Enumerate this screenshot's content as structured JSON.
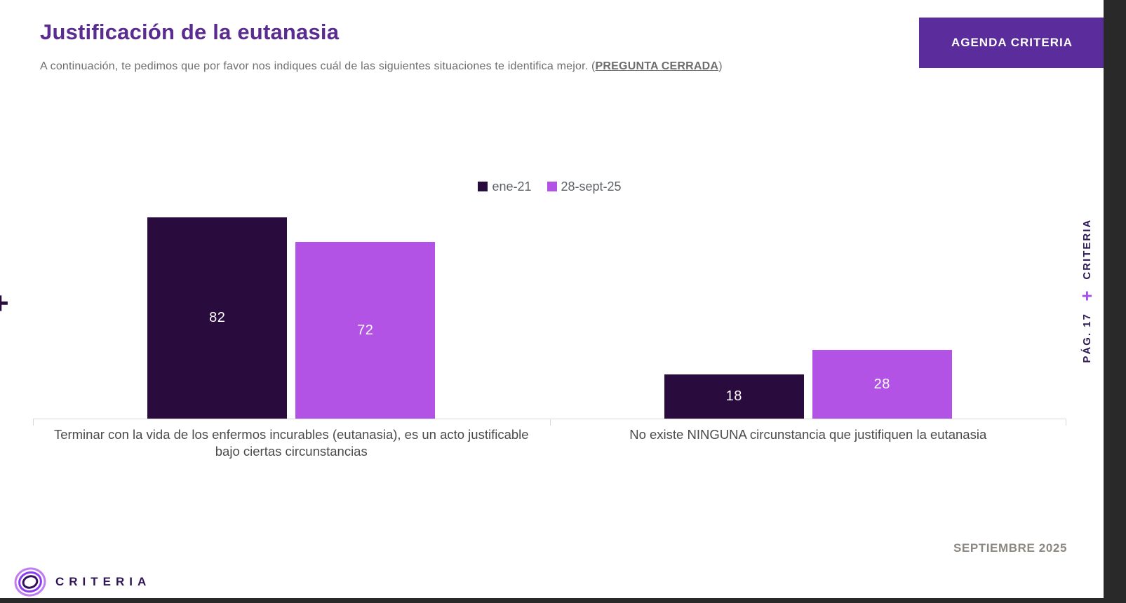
{
  "header": {
    "title": "Justificación de la eutanasia",
    "subtitle_prefix": "A continuación, te pedimos que por favor nos indiques cuál de las siguientes situaciones te identifica mejor. (",
    "subtitle_emphasis": "PREGUNTA CERRADA",
    "subtitle_suffix": ")",
    "agenda_button_label": "AGENDA CRITERIA"
  },
  "chart_data": {
    "type": "bar",
    "title": "Justificación de la eutanasia",
    "categories": [
      "Terminar con la vida de los enfermos incurables (eutanasia), es un acto justificable bajo ciertas circunstancias",
      "No existe NINGUNA circunstancia que justifiquen la eutanasia"
    ],
    "series": [
      {
        "name": "ene-21",
        "color": "#2a0b3d",
        "values": [
          82,
          18
        ]
      },
      {
        "name": "28-sept-25",
        "color": "#b253e6",
        "values": [
          72,
          28
        ]
      }
    ],
    "value_label_color": "#ffffff",
    "ylim": [
      0,
      100
    ],
    "grid": false,
    "legend_position": "top-center",
    "axis_line_color": "#d9d9d9"
  },
  "side_rail": {
    "brand": "CRITERIA",
    "plus": "+",
    "page": "PÁG. 17"
  },
  "decorations": {
    "left_plus": "+"
  },
  "footer": {
    "date_label": "SEPTIEMBRE 2025",
    "brand_name": "CRITERIA"
  },
  "colors": {
    "accent_purple": "#5b2c90",
    "button_purple": "#5b2c9b",
    "series_dark": "#2a0b3d",
    "series_light": "#b253e6",
    "viewer_strip": "#292929"
  }
}
